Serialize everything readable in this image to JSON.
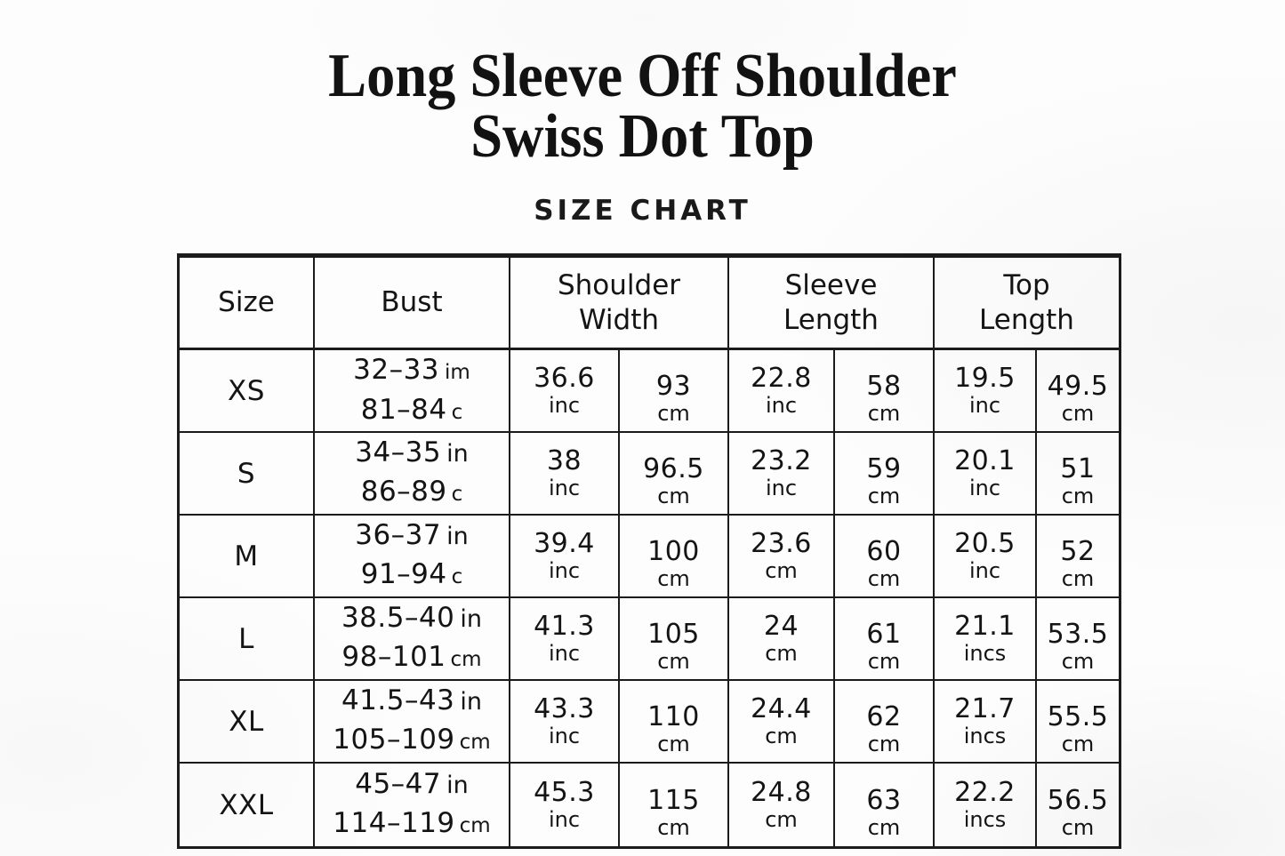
{
  "page": {
    "title_line1": "Long Sleeve Off Shoulder",
    "title_line2": "Swiss Dot Top",
    "subtitle": "SIZE CHART",
    "background_color": "#fdfdfd",
    "text_color": "#141414",
    "border_color": "#1b1b1b"
  },
  "table": {
    "header": {
      "size": "Size",
      "bust": "Bust",
      "shoulder": [
        "Shoulder",
        "Width"
      ],
      "sleeve": [
        "Sleeve",
        "Length"
      ],
      "top": [
        "Top",
        "Length"
      ]
    },
    "rows": [
      {
        "size": "XS",
        "bust_line1": {
          "range": "32–33",
          "unit": "im"
        },
        "bust_line2": {
          "range": "81–84",
          "unit": "c"
        },
        "shoulder_in": {
          "value": "36.6",
          "unit": "inc"
        },
        "shoulder_cm": {
          "value": "93",
          "unit": "cm"
        },
        "sleeve_in": {
          "value": "22.8",
          "unit": "inc"
        },
        "sleeve_cm": {
          "value": "58",
          "unit": "cm"
        },
        "top_in": {
          "value": "19.5",
          "unit": "inc"
        },
        "top_cm": {
          "value": "49.5",
          "unit": "cm"
        }
      },
      {
        "size": "S",
        "bust_line1": {
          "range": "34–35",
          "unit": "in"
        },
        "bust_line2": {
          "range": "86–89",
          "unit": "c"
        },
        "shoulder_in": {
          "value": "38",
          "unit": "inc"
        },
        "shoulder_cm": {
          "value": "96.5",
          "unit": "cm"
        },
        "sleeve_in": {
          "value": "23.2",
          "unit": "inc"
        },
        "sleeve_cm": {
          "value": "59",
          "unit": "cm"
        },
        "top_in": {
          "value": "20.1",
          "unit": "inc"
        },
        "top_cm": {
          "value": "51",
          "unit": "cm"
        }
      },
      {
        "size": "M",
        "bust_line1": {
          "range": "36–37",
          "unit": "in"
        },
        "bust_line2": {
          "range": "91–94",
          "unit": "c"
        },
        "shoulder_in": {
          "value": "39.4",
          "unit": "inc"
        },
        "shoulder_cm": {
          "value": "100",
          "unit": "cm"
        },
        "sleeve_in": {
          "value": "23.6",
          "unit": "cm"
        },
        "sleeve_cm": {
          "value": "60",
          "unit": "cm"
        },
        "top_in": {
          "value": "20.5",
          "unit": "inc"
        },
        "top_cm": {
          "value": "52",
          "unit": "cm"
        }
      },
      {
        "size": "L",
        "bust_line1": {
          "range": "38.5–40",
          "unit": "in"
        },
        "bust_line2": {
          "range": "98–101",
          "unit": "cm"
        },
        "shoulder_in": {
          "value": "41.3",
          "unit": "inc"
        },
        "shoulder_cm": {
          "value": "105",
          "unit": "cm"
        },
        "sleeve_in": {
          "value": "24",
          "unit": "cm"
        },
        "sleeve_cm": {
          "value": "61",
          "unit": "cm"
        },
        "top_in": {
          "value": "21.1",
          "unit": "incs"
        },
        "top_cm": {
          "value": "53.5",
          "unit": "cm"
        }
      },
      {
        "size": "XL",
        "bust_line1": {
          "range": "41.5–43",
          "unit": "in"
        },
        "bust_line2": {
          "range": "105–109",
          "unit": "cm"
        },
        "shoulder_in": {
          "value": "43.3",
          "unit": "inc"
        },
        "shoulder_cm": {
          "value": "110",
          "unit": "cm"
        },
        "sleeve_in": {
          "value": "24.4",
          "unit": "cm"
        },
        "sleeve_cm": {
          "value": "62",
          "unit": "cm"
        },
        "top_in": {
          "value": "21.7",
          "unit": "incs"
        },
        "top_cm": {
          "value": "55.5",
          "unit": "cm"
        }
      },
      {
        "size": "XXL",
        "bust_line1": {
          "range": "45–47",
          "unit": "in"
        },
        "bust_line2": {
          "range": "114–119",
          "unit": "cm"
        },
        "shoulder_in": {
          "value": "45.3",
          "unit": "inc"
        },
        "shoulder_cm": {
          "value": "115",
          "unit": "cm"
        },
        "sleeve_in": {
          "value": "24.8",
          "unit": "cm"
        },
        "sleeve_cm": {
          "value": "63",
          "unit": "cm"
        },
        "top_in": {
          "value": "22.2",
          "unit": "incs"
        },
        "top_cm": {
          "value": "56.5",
          "unit": "cm"
        }
      }
    ]
  },
  "chart_data": {
    "type": "table",
    "title": "Long Sleeve Off Shoulder Swiss Dot Top",
    "subtitle": "SIZE CHART",
    "columns": [
      "Size",
      "Bust (in)",
      "Bust (cm)",
      "Shoulder Width (in)",
      "Shoulder Width (cm)",
      "Sleeve Length (in)",
      "Sleeve Length (cm)",
      "Top Length (in)",
      "Top Length (cm)"
    ],
    "rows": [
      [
        "XS",
        "32–33",
        "81–84",
        36.6,
        93,
        22.8,
        58,
        19.5,
        49.5
      ],
      [
        "S",
        "34–35",
        "86–89",
        38,
        96.5,
        23.2,
        59,
        20.1,
        51
      ],
      [
        "M",
        "36–37",
        "91–94",
        39.4,
        100,
        23.6,
        60,
        20.5,
        52
      ],
      [
        "L",
        "38.5–40",
        "98–101",
        41.3,
        105,
        24,
        61,
        21.1,
        53.5
      ],
      [
        "XL",
        "41.5–43",
        "105–109",
        43.3,
        110,
        24.4,
        62,
        21.7,
        55.5
      ],
      [
        "XXL",
        "45–47",
        "114–119",
        45.3,
        115,
        24.8,
        63,
        22.2,
        56.5
      ]
    ]
  }
}
